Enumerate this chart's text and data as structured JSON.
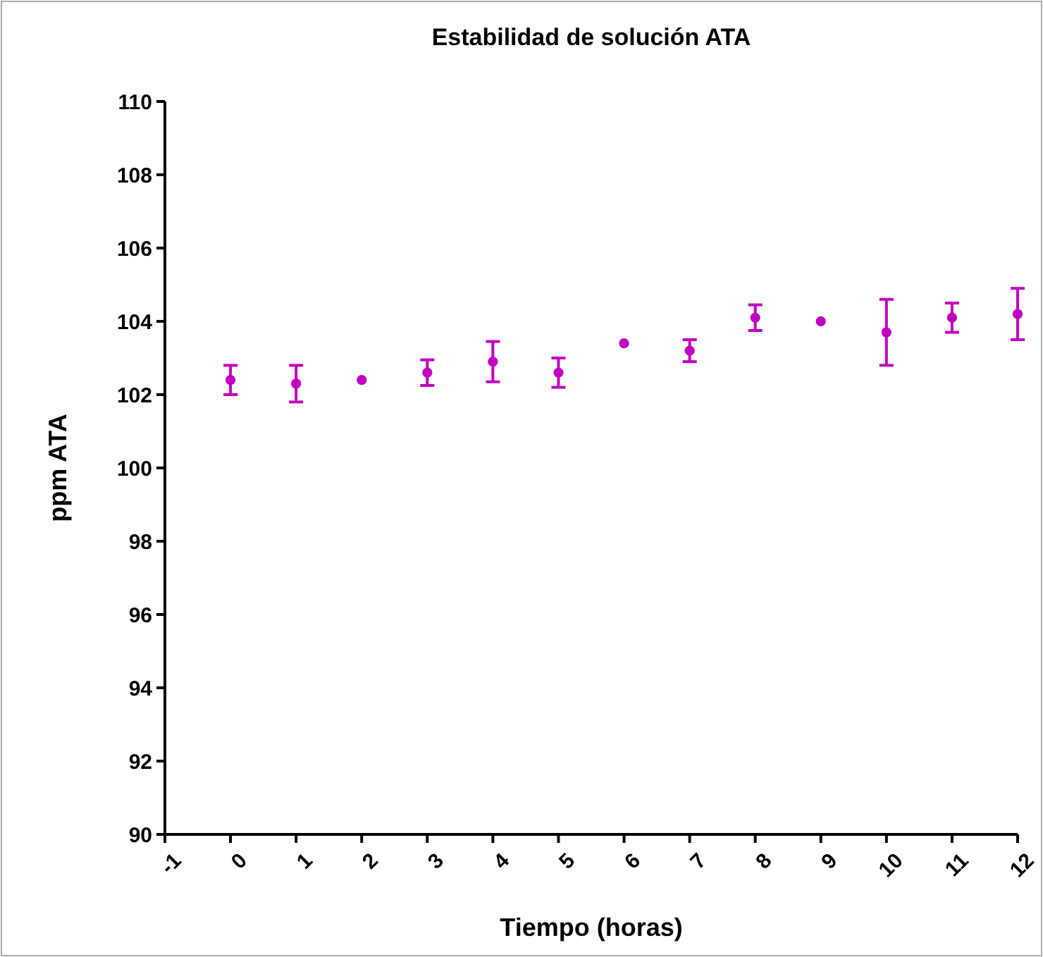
{
  "chart_data": {
    "type": "scatter",
    "title": "Estabilidad de solución ATA",
    "xlabel": "Tiempo (horas)",
    "ylabel": "ppm ATA",
    "x": [
      0,
      1,
      2,
      3,
      4,
      5,
      6,
      7,
      8,
      9,
      10,
      11,
      12
    ],
    "series": [
      {
        "color": "#c000c0",
        "values": [
          102.4,
          102.3,
          102.4,
          102.6,
          102.9,
          102.6,
          103.4,
          103.2,
          104.1,
          104.0,
          103.7,
          104.1,
          104.2
        ],
        "errors": [
          0.4,
          0.5,
          null,
          0.35,
          0.55,
          0.4,
          null,
          0.3,
          0.35,
          null,
          0.9,
          0.4,
          0.7
        ]
      }
    ],
    "xlim": [
      -1,
      12
    ],
    "xticks": [
      -1,
      0,
      1,
      2,
      3,
      4,
      5,
      6,
      7,
      8,
      9,
      10,
      11,
      12
    ],
    "ylim": [
      90,
      110
    ],
    "yticks": [
      90,
      92,
      94,
      96,
      98,
      100,
      102,
      104,
      106,
      108,
      110
    ],
    "marker": "circle"
  }
}
